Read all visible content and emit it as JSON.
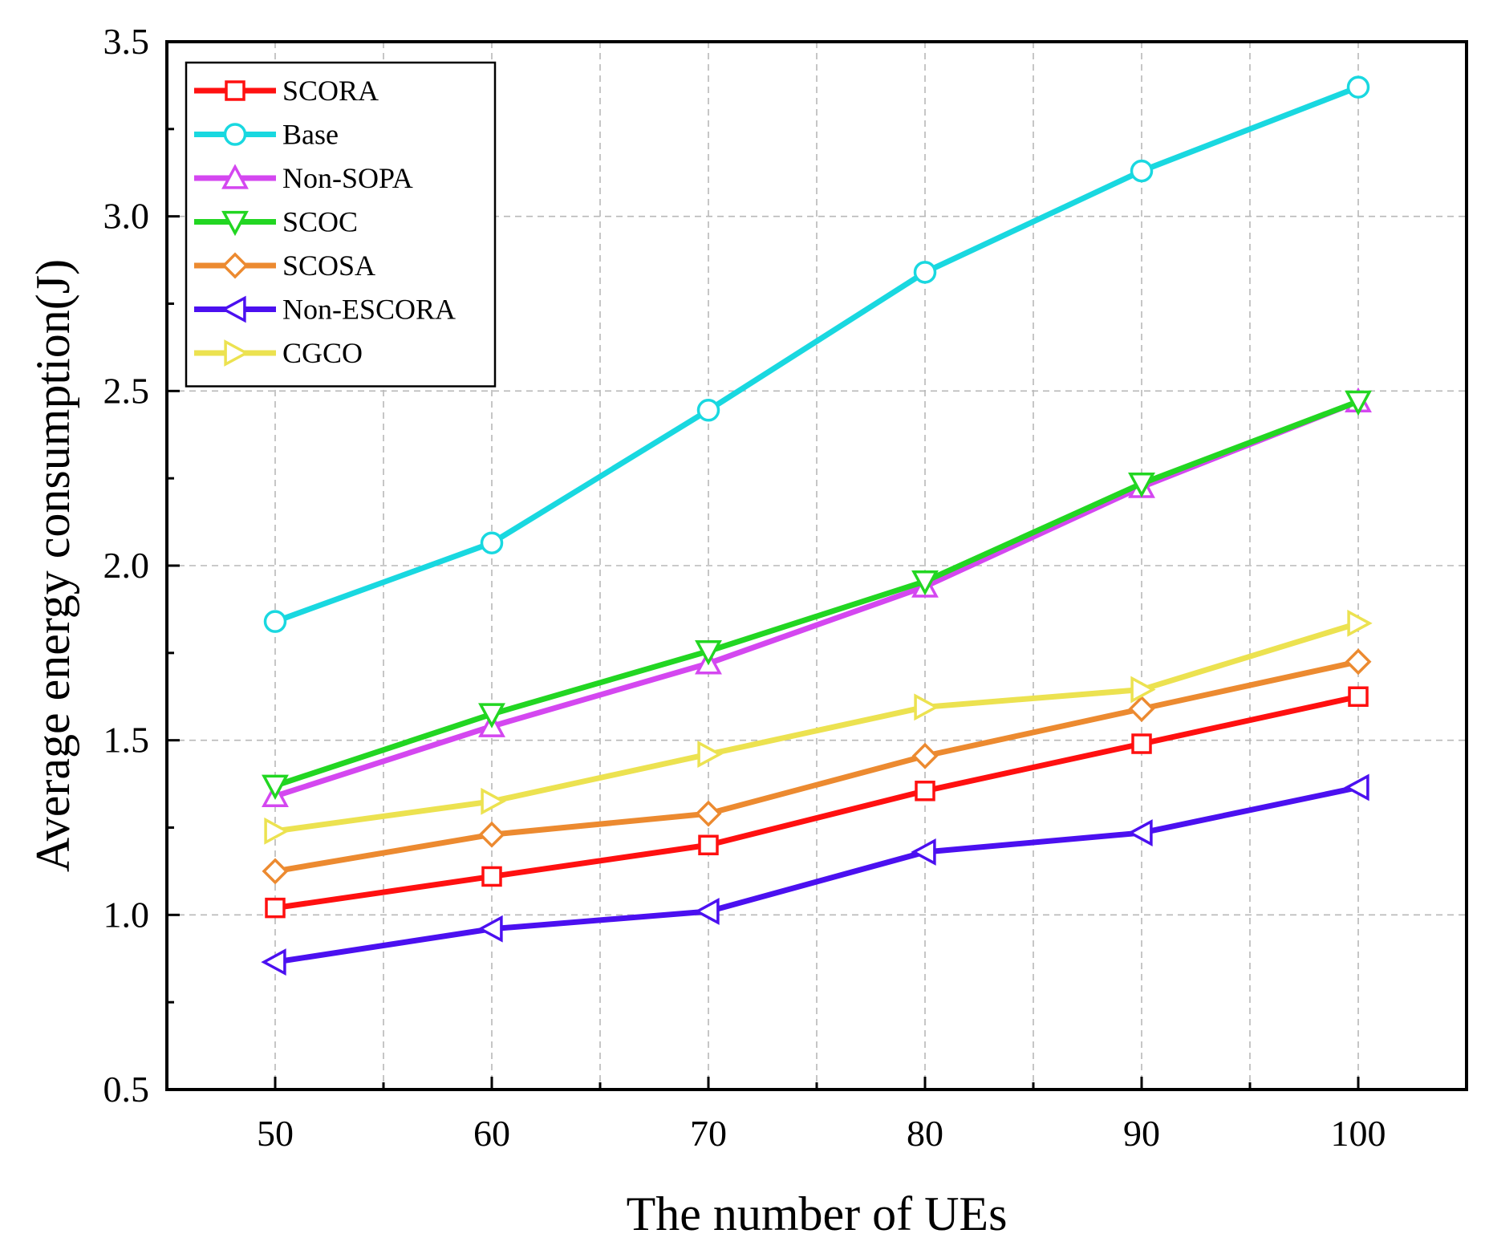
{
  "chart_data": {
    "type": "line",
    "title": "",
    "xlabel": "The number of UEs",
    "ylabel": "Average energy consumption(J)",
    "x": [
      50,
      60,
      70,
      80,
      90,
      100
    ],
    "xlim": [
      45,
      105
    ],
    "ylim": [
      0.5,
      3.5
    ],
    "xticks": [
      50,
      60,
      70,
      80,
      90,
      100
    ],
    "yticks": [
      "0.5",
      "1.0",
      "1.5",
      "2.0",
      "2.5",
      "3.0",
      "3.5"
    ],
    "grid": true,
    "legend_position": "top-left",
    "series": [
      {
        "name": "SCORA",
        "color": "#ff1010",
        "marker": "square",
        "values": [
          1.02,
          1.11,
          1.2,
          1.355,
          1.49,
          1.625
        ]
      },
      {
        "name": "Base",
        "color": "#19d8e0",
        "marker": "circle",
        "values": [
          1.84,
          2.065,
          2.445,
          2.84,
          3.13,
          3.37
        ]
      },
      {
        "name": "Non-SOPA",
        "color": "#d447f0",
        "marker": "triangle-up",
        "values": [
          1.34,
          1.54,
          1.72,
          1.94,
          2.225,
          2.47
        ]
      },
      {
        "name": "SCOC",
        "color": "#22d622",
        "marker": "triangle-down",
        "values": [
          1.37,
          1.575,
          1.755,
          1.955,
          2.235,
          2.47
        ]
      },
      {
        "name": "SCOSA",
        "color": "#ec8a30",
        "marker": "diamond",
        "values": [
          1.125,
          1.23,
          1.29,
          1.455,
          1.59,
          1.725
        ]
      },
      {
        "name": "Non-ESCORA",
        "color": "#4b10f0",
        "marker": "triangle-left",
        "values": [
          0.865,
          0.96,
          1.01,
          1.18,
          1.235,
          1.365
        ]
      },
      {
        "name": "CGCO",
        "color": "#ece250",
        "marker": "triangle-right",
        "values": [
          1.24,
          1.325,
          1.46,
          1.595,
          1.645,
          1.835
        ]
      }
    ]
  }
}
